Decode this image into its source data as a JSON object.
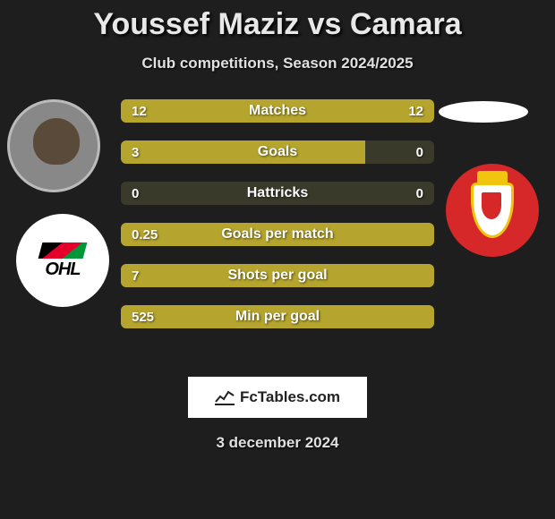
{
  "title": "Youssef Maziz vs Camara",
  "subtitle": "Club competitions, Season 2024/2025",
  "date": "3 december 2024",
  "footer_brand": "FcTables.com",
  "players": {
    "left": {
      "name": "Youssef Maziz",
      "club": "OHL"
    },
    "right": {
      "name": "Camara",
      "club": "Standard"
    }
  },
  "bars": {
    "color": "#b5a52e",
    "bg_color": "#3a3a2a",
    "rows": [
      {
        "label": "Matches",
        "left": "12",
        "right": "12",
        "left_pct": 50,
        "right_pct": 50
      },
      {
        "label": "Goals",
        "left": "3",
        "right": "0",
        "left_pct": 78,
        "right_pct": 0
      },
      {
        "label": "Hattricks",
        "left": "0",
        "right": "0",
        "left_pct": 0,
        "right_pct": 0
      },
      {
        "label": "Goals per match",
        "left": "0.25",
        "right": "",
        "left_pct": 100,
        "right_pct": 0
      },
      {
        "label": "Shots per goal",
        "left": "7",
        "right": "",
        "left_pct": 100,
        "right_pct": 0
      },
      {
        "label": "Min per goal",
        "left": "525",
        "right": "",
        "left_pct": 100,
        "right_pct": 0
      }
    ]
  }
}
